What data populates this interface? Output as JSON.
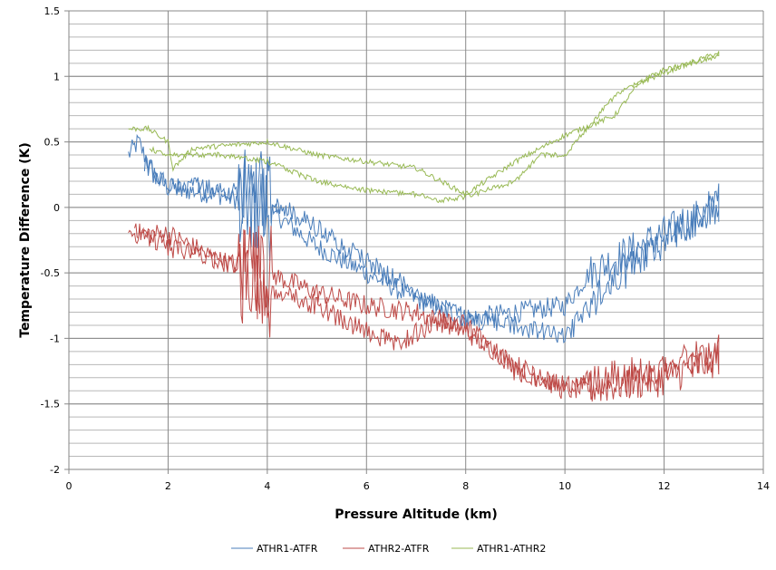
{
  "chart_data": {
    "type": "line",
    "title": "",
    "xlabel": "Pressure Altitude (km)",
    "ylabel": "Temperature Difference (K)",
    "xlim": [
      0,
      14
    ],
    "ylim": [
      -2,
      1.5
    ],
    "xticks": [
      0,
      2,
      4,
      6,
      8,
      10,
      12,
      14
    ],
    "yticks": [
      -2,
      -1.5,
      -1,
      -0.5,
      0,
      0.5,
      1,
      1.5
    ],
    "y_minor_step": 0.1,
    "grid": true,
    "legend_position": "bottom",
    "series": [
      {
        "name": "ATHR1-ATFR",
        "color": "#4a7ebb",
        "points": [
          [
            1.2,
            0.4
          ],
          [
            1.4,
            0.5
          ],
          [
            1.7,
            0.25
          ],
          [
            2,
            0.15
          ],
          [
            3,
            0.1
          ],
          [
            3.5,
            0.05
          ],
          [
            4,
            0.0
          ],
          [
            5,
            -0.3
          ],
          [
            6,
            -0.5
          ],
          [
            7,
            -0.7
          ],
          [
            8,
            -0.85
          ],
          [
            9,
            -0.8
          ],
          [
            10,
            -0.75
          ],
          [
            10.5,
            -0.5
          ],
          [
            11,
            -0.4
          ],
          [
            12,
            -0.2
          ],
          [
            13.1,
            0.0
          ],
          [
            13.1,
            0.05
          ],
          [
            12,
            -0.25
          ],
          [
            11,
            -0.55
          ],
          [
            10.3,
            -0.85
          ],
          [
            10,
            -1.0
          ],
          [
            9,
            -0.9
          ],
          [
            8,
            -0.85
          ],
          [
            7,
            -0.65
          ],
          [
            6,
            -0.4
          ],
          [
            5,
            -0.15
          ],
          [
            4,
            0.05
          ],
          [
            3,
            0.15
          ],
          [
            2,
            0.15
          ],
          [
            1.5,
            0.35
          ]
        ]
      },
      {
        "name": "ATHR2-ATFR",
        "color": "#be4b48",
        "points": [
          [
            1.2,
            -0.2
          ],
          [
            2,
            -0.2
          ],
          [
            3,
            -0.4
          ],
          [
            4,
            -0.5
          ],
          [
            5,
            -0.65
          ],
          [
            6,
            -0.75
          ],
          [
            7,
            -0.8
          ],
          [
            8,
            -0.95
          ],
          [
            9,
            -1.2
          ],
          [
            10,
            -1.4
          ],
          [
            11,
            -1.35
          ],
          [
            12,
            -1.3
          ],
          [
            13.1,
            -1.15
          ],
          [
            13.1,
            -1.1
          ],
          [
            12,
            -1.25
          ],
          [
            11,
            -1.3
          ],
          [
            10,
            -1.35
          ],
          [
            9,
            -1.25
          ],
          [
            8,
            -0.9
          ],
          [
            7.5,
            -0.85
          ],
          [
            7,
            -0.95
          ],
          [
            6.6,
            -1.05
          ],
          [
            6,
            -0.95
          ],
          [
            5,
            -0.75
          ],
          [
            4,
            -0.6
          ],
          [
            3,
            -0.4
          ],
          [
            2,
            -0.3
          ],
          [
            1.3,
            -0.15
          ]
        ]
      },
      {
        "name": "ATHR1-ATHR2",
        "color": "#98b954",
        "points": [
          [
            1.2,
            0.6
          ],
          [
            1.6,
            0.6
          ],
          [
            2,
            0.5
          ],
          [
            2.1,
            0.3
          ],
          [
            2.5,
            0.45
          ],
          [
            4,
            0.5
          ],
          [
            5,
            0.4
          ],
          [
            6,
            0.35
          ],
          [
            7,
            0.3
          ],
          [
            8,
            0.1
          ],
          [
            9,
            0.35
          ],
          [
            10,
            0.55
          ],
          [
            11,
            0.7
          ],
          [
            11.5,
            0.95
          ],
          [
            12.5,
            1.1
          ],
          [
            13.1,
            1.18
          ],
          [
            13.1,
            1.15
          ],
          [
            12,
            1.05
          ],
          [
            11,
            0.85
          ],
          [
            10,
            0.4
          ],
          [
            9.5,
            0.4
          ],
          [
            9,
            0.2
          ],
          [
            8,
            0.08
          ],
          [
            7.5,
            0.05
          ],
          [
            7,
            0.1
          ],
          [
            6,
            0.13
          ],
          [
            5,
            0.2
          ],
          [
            4,
            0.35
          ],
          [
            3,
            0.4
          ],
          [
            2,
            0.4
          ],
          [
            1.6,
            0.45
          ]
        ]
      }
    ]
  }
}
